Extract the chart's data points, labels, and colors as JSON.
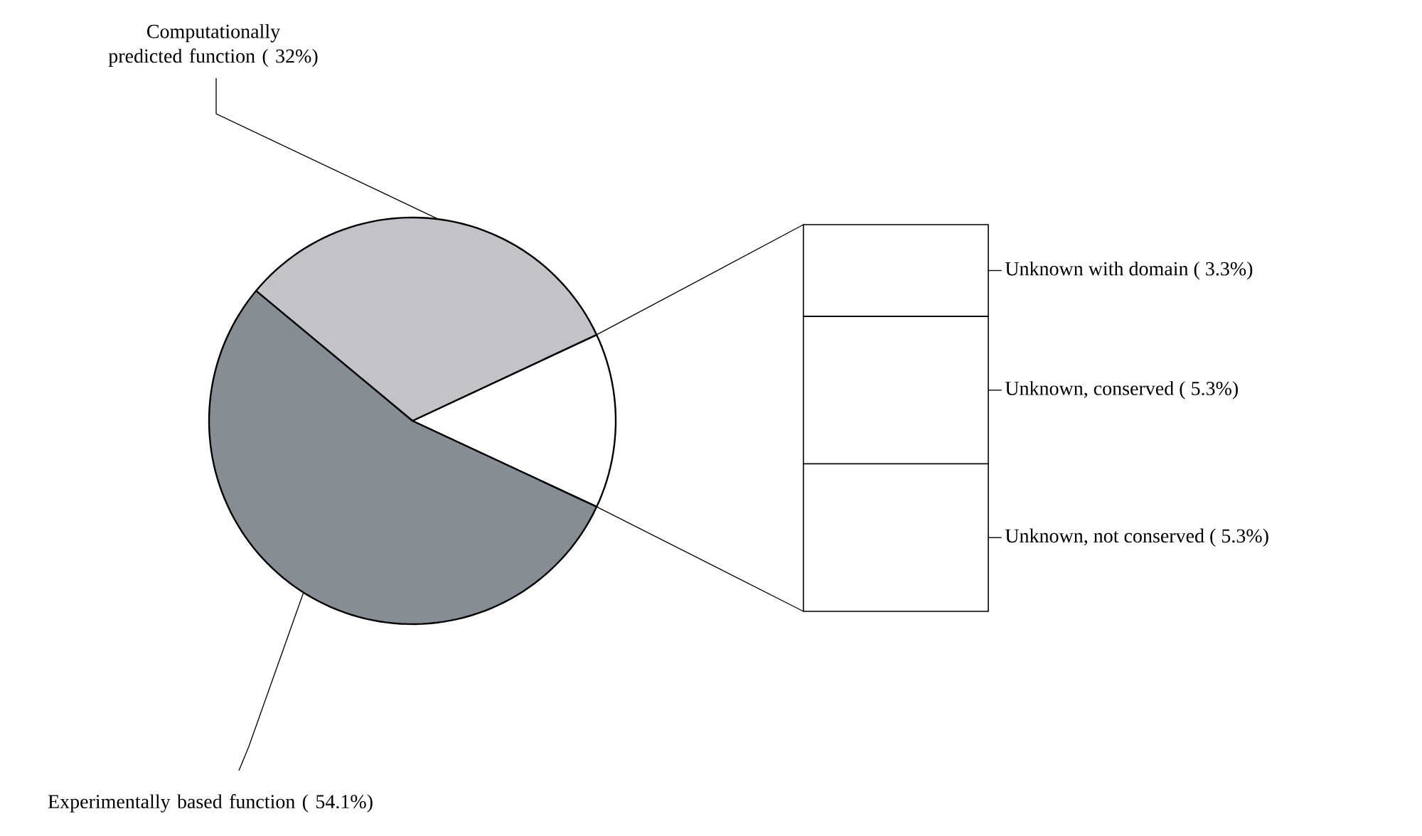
{
  "chart_data": [
    {
      "type": "pie",
      "categories": [
        null,
        "Computationally predicted function ( 32%)",
        "Experimentally based function ( 54.1%)"
      ],
      "values": [
        13.9,
        32,
        54.1
      ],
      "colors": [
        "#ffffff",
        "#c1c3c9",
        "#868d95"
      ]
    },
    {
      "type": "bar",
      "stacked": true,
      "categories": [
        null
      ],
      "series": [
        {
          "color": "#ffffff",
          "values": [
            5.3
          ],
          "value_labels": [
            "Unknown, not conserved ( 5.3%)"
          ]
        },
        {
          "color": "#ffffff",
          "values": [
            5.3
          ],
          "value_labels": [
            "Unknown, conserved ( 5.3%)"
          ]
        },
        {
          "color": "#ffffff",
          "values": [
            3.3
          ],
          "value_labels": [
            "Unknown with domain ( 3.3%)"
          ]
        }
      ]
    }
  ]
}
